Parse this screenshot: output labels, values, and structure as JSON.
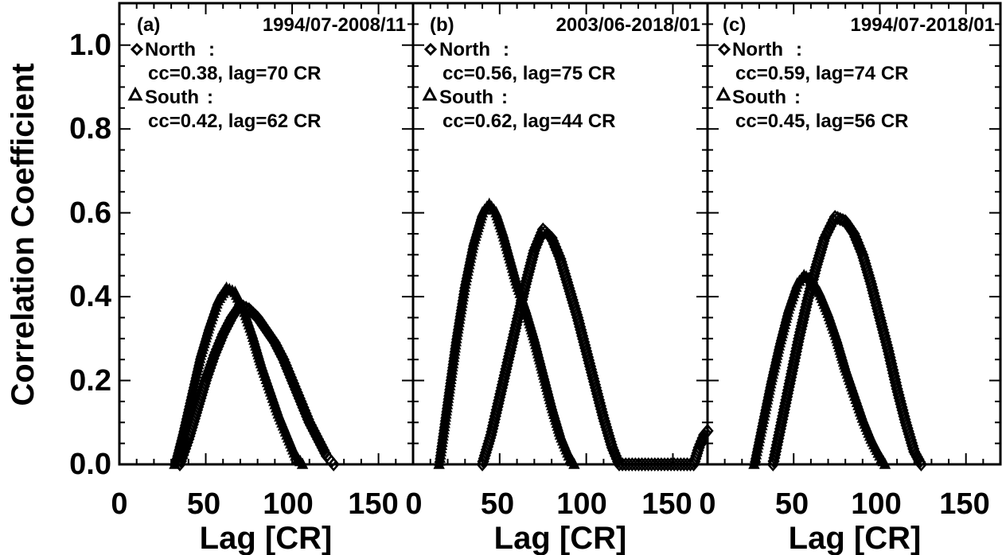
{
  "ylabel": "Correlation Coefficient",
  "xlabel": "Lag [CR]",
  "y_ticks": [
    "0.0",
    "0.2",
    "0.4",
    "0.6",
    "0.8",
    "1.0"
  ],
  "x_ticks_panel_a": [
    "0",
    "50",
    "100",
    "150"
  ],
  "x_ticks_panel_b": [
    "0",
    "50",
    "100",
    "150"
  ],
  "x_ticks_panel_c": [
    "0",
    "50",
    "100",
    "150"
  ],
  "panels": [
    {
      "label": "(a)",
      "period": "1994/07-2008/11",
      "north_label": "North",
      "north_stats": "cc=0.38, lag=70 CR",
      "south_label": "South",
      "south_stats": "cc=0.42, lag=62 CR"
    },
    {
      "label": "(b)",
      "period": "2003/06-2018/01",
      "north_label": "North",
      "north_stats": "cc=0.56, lag=75 CR",
      "south_label": "South",
      "south_stats": "cc=0.62, lag=44 CR"
    },
    {
      "label": "(c)",
      "period": "1994/07-2018/01",
      "north_label": "North",
      "north_stats": "cc=0.59, lag=74 CR",
      "south_label": "South",
      "south_stats": "cc=0.45, lag=56 CR"
    }
  ],
  "chart_data": [
    {
      "type": "scatter",
      "title": "(a) 1994/07-2008/11",
      "xlabel": "Lag [CR]",
      "ylabel": "Correlation Coefficient",
      "xlim": [
        0,
        170
      ],
      "ylim": [
        0,
        1.1
      ],
      "series": [
        {
          "name": "North",
          "marker": "diamond",
          "x": [
            35,
            40,
            45,
            50,
            55,
            60,
            65,
            70,
            75,
            80,
            85,
            90,
            95,
            100,
            105,
            110,
            115,
            120,
            124
          ],
          "y": [
            0.0,
            0.06,
            0.13,
            0.2,
            0.26,
            0.31,
            0.35,
            0.38,
            0.37,
            0.35,
            0.32,
            0.29,
            0.25,
            0.2,
            0.15,
            0.1,
            0.06,
            0.02,
            0.0
          ]
        },
        {
          "name": "South",
          "marker": "triangle",
          "x": [
            32,
            37,
            42,
            47,
            52,
            57,
            62,
            67,
            72,
            77,
            82,
            87,
            92,
            97,
            102,
            106
          ],
          "y": [
            0.0,
            0.08,
            0.17,
            0.26,
            0.33,
            0.39,
            0.42,
            0.41,
            0.37,
            0.31,
            0.24,
            0.18,
            0.12,
            0.07,
            0.02,
            0.0
          ]
        }
      ]
    },
    {
      "type": "scatter",
      "title": "(b) 2003/06-2018/01",
      "xlabel": "Lag [CR]",
      "ylabel": "Correlation Coefficient",
      "xlim": [
        0,
        170
      ],
      "ylim": [
        0,
        1.1
      ],
      "series": [
        {
          "name": "North",
          "marker": "diamond",
          "x": [
            40,
            45,
            50,
            55,
            60,
            65,
            70,
            75,
            80,
            85,
            90,
            95,
            100,
            105,
            110,
            115,
            119,
            162,
            165,
            168,
            170
          ],
          "y": [
            0.0,
            0.07,
            0.16,
            0.25,
            0.34,
            0.43,
            0.51,
            0.56,
            0.54,
            0.49,
            0.42,
            0.35,
            0.27,
            0.19,
            0.11,
            0.04,
            0.0,
            0.0,
            0.04,
            0.07,
            0.08
          ]
        },
        {
          "name": "South",
          "marker": "triangle",
          "x": [
            15,
            20,
            25,
            30,
            35,
            40,
            44,
            48,
            52,
            56,
            60,
            65,
            70,
            75,
            80,
            85,
            90,
            93
          ],
          "y": [
            0.0,
            0.15,
            0.3,
            0.43,
            0.53,
            0.6,
            0.62,
            0.6,
            0.55,
            0.49,
            0.43,
            0.37,
            0.3,
            0.22,
            0.14,
            0.07,
            0.02,
            0.0
          ]
        }
      ]
    },
    {
      "type": "scatter",
      "title": "(c) 1994/07-2018/01",
      "xlabel": "Lag [CR]",
      "ylabel": "Correlation Coefficient",
      "xlim": [
        0,
        170
      ],
      "ylim": [
        0,
        1.1
      ],
      "series": [
        {
          "name": "North",
          "marker": "diamond",
          "x": [
            38,
            43,
            48,
            53,
            58,
            63,
            68,
            74,
            80,
            85,
            90,
            95,
            100,
            105,
            110,
            115,
            120,
            124
          ],
          "y": [
            0.0,
            0.1,
            0.2,
            0.3,
            0.39,
            0.47,
            0.54,
            0.59,
            0.58,
            0.55,
            0.5,
            0.43,
            0.35,
            0.27,
            0.18,
            0.1,
            0.03,
            0.0
          ]
        },
        {
          "name": "South",
          "marker": "triangle",
          "x": [
            27,
            32,
            37,
            42,
            47,
            52,
            56,
            60,
            65,
            70,
            75,
            80,
            85,
            90,
            95,
            100,
            103
          ],
          "y": [
            0.0,
            0.1,
            0.2,
            0.29,
            0.37,
            0.43,
            0.45,
            0.44,
            0.41,
            0.36,
            0.3,
            0.23,
            0.17,
            0.11,
            0.06,
            0.02,
            0.0
          ]
        }
      ]
    }
  ]
}
